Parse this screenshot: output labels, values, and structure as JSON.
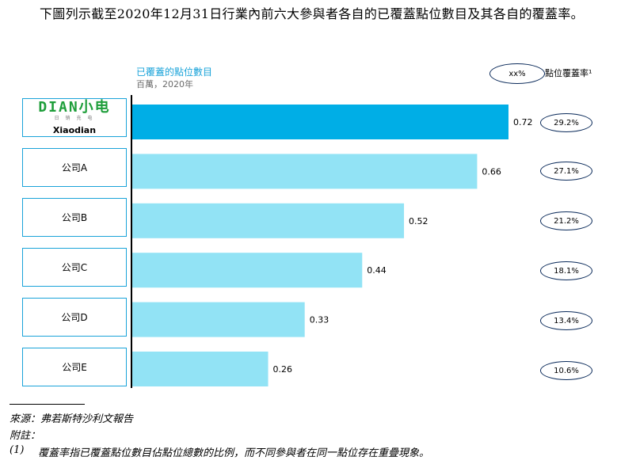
{
  "intro_text": "下圖列示截至2020年12月31日行業內前六大參與者各自的已覆蓋點位數目及其各自的覆蓋率。",
  "legend": {
    "oval_text": "xx%",
    "label": "點位覆蓋率¹"
  },
  "logo": {
    "wordmark": "DIAN小电",
    "tagline": "日 销 充 电"
  },
  "colors": {
    "highlight": "#00aee6",
    "others": "#92e3f5",
    "accent_text": "#1aa3d9"
  },
  "chart_data": {
    "type": "bar",
    "orientation": "horizontal",
    "title": "已覆蓋的點位數目",
    "subtitle": "百萬，2020年",
    "categories": [
      "Xiaodian",
      "公司A",
      "公司B",
      "公司C",
      "公司D",
      "公司E"
    ],
    "values": [
      0.72,
      0.66,
      0.52,
      0.44,
      0.33,
      0.26
    ],
    "value_labels": [
      "0.72",
      "0.66",
      "0.52",
      "0.44",
      "0.33",
      "0.26"
    ],
    "coverage_rates": [
      "29.2%",
      "27.1%",
      "21.2%",
      "18.1%",
      "13.4%",
      "10.6%"
    ],
    "highlight_index": 0,
    "xlim": [
      0,
      0.8
    ]
  },
  "footnotes": {
    "source": "來源：弗若斯特沙利文報告",
    "notes_label": "附註：",
    "note_1_number": "(1)",
    "note_1_text": "覆蓋率指已覆蓋點位數目佔點位總數的比例，而不同參與者在同一點位存在重疊現象。"
  }
}
